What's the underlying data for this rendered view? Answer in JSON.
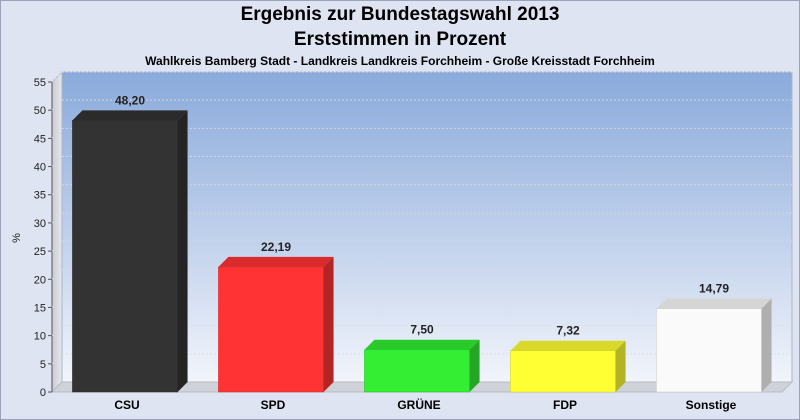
{
  "chart_data": {
    "type": "bar",
    "title": "Ergebnis zur Bundestagswahl 2013",
    "subtitle": "Erststimmen in Prozent",
    "caption": "Wahlkreis Bamberg Stadt - Landkreis Landkreis Forchheim - Große Kreisstadt Forchheim",
    "ylabel": "%",
    "ylim": [
      0,
      55
    ],
    "yticks": [
      "0",
      "5",
      "10",
      "15",
      "20",
      "25",
      "30",
      "35",
      "40",
      "45",
      "50",
      "55"
    ],
    "categories": [
      "CSU",
      "SPD",
      "GRÜNE",
      "FDP",
      "Sonstige"
    ],
    "values": [
      48.2,
      22.19,
      7.5,
      7.32,
      14.79
    ],
    "value_labels": [
      "48,20",
      "22,19",
      "7,50",
      "7,32",
      "14,79"
    ],
    "colors": [
      "#333333",
      "#ff3333",
      "#33ee33",
      "#ffff33",
      "#fafafa"
    ],
    "grid": true
  }
}
